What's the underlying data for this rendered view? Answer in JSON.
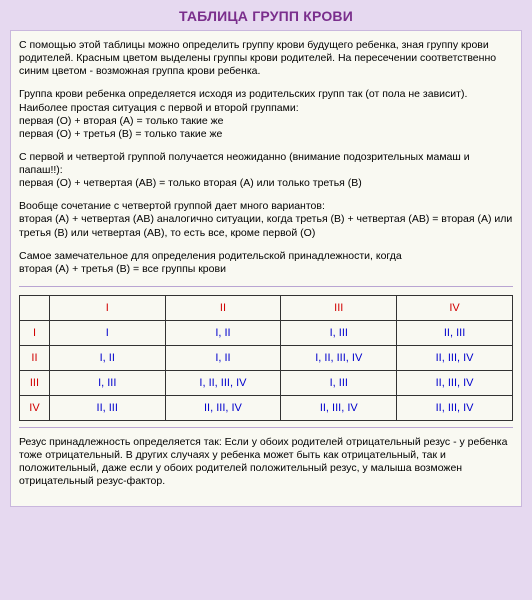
{
  "title": "ТАБЛИЦА ГРУПП КРОВИ",
  "p1": "С помощью этой таблицы можно определить группу крови будущего ребенка, зная группу крови родителей. Красным цветом выделены группы крови родителей. На пересечении соответственно синим цветом - возможная группа крови ребенка.",
  "p2a": "Группа крови ребенка определяется исходя из родительских групп так (от пола не зависит).",
  "p2b": "Наиболее простая ситуация с первой и второй группами:",
  "p2c": "первая (О) + вторая (А) = только такие же",
  "p2d": "первая (О) + третья (В) = только такие же",
  "p3a": "С первой и четвертой группой получается неожиданно (внимание подозрительных мамаш и папаш!!):",
  "p3b": "первая (О) + четвертая (АВ) = только вторая (А) или только третья (В)",
  "p4a": "Вообще сочетание с четвертой группой дает много вариантов:",
  "p4b": "вторая (А) + четвертая (АВ) аналогично ситуации, когда третья (В) + четвертая (АВ) = вторая (А) или третья (В) или четвертая (АВ), то есть все, кроме первой (О)",
  "p5a": "Самое замечательное для определения родительской принадлежности, когда",
  "p5b": "вторая (А) + третья (В) = все группы крови",
  "cols": {
    "c1": "I",
    "c2": "II",
    "c3": "III",
    "c4": "IV"
  },
  "rows": {
    "r1": {
      "h": "I",
      "c1": "I",
      "c2": "I, II",
      "c3": "I, III",
      "c4": "II, III"
    },
    "r2": {
      "h": "II",
      "c1": "I, II",
      "c2": "I, II",
      "c3": "I, II, III, IV",
      "c4": "II, III, IV"
    },
    "r3": {
      "h": "III",
      "c1": "I, III",
      "c2": "I, II, III, IV",
      "c3": "I, III",
      "c4": "II, III, IV"
    },
    "r4": {
      "h": "IV",
      "c1": "II, III",
      "c2": "II, III, IV",
      "c3": "II, III, IV",
      "c4": "II, III, IV"
    }
  },
  "p6": "Резус принадлежность определяется так: Если у обоих родителей отрицательный резус - у ребенка тоже отрицательный. В других случаях у ребенка может быть как отрицательный, так и положительный, даже если у обоих родителей положительный резус, у малыша возможен отрицательный резус-фактор."
}
